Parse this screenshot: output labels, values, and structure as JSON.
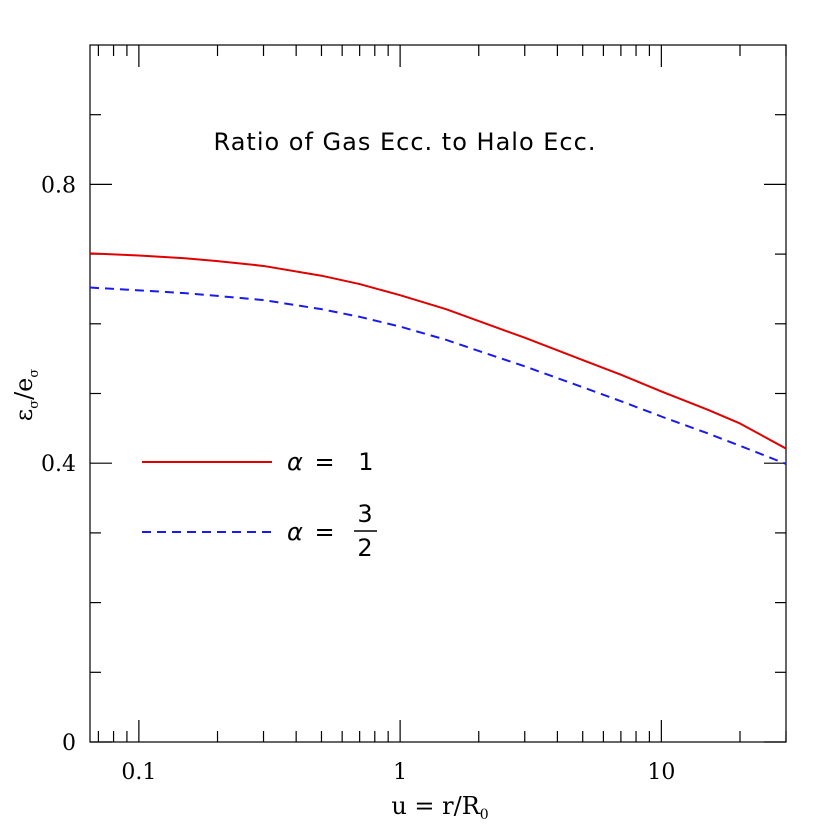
{
  "chart_data": {
    "type": "line",
    "title": "Ratio of Gas Ecc. to Halo Ecc.",
    "x_scale": "log",
    "xlim": [
      0.065,
      30
    ],
    "ylim": [
      0,
      1.0
    ],
    "xlabel": {
      "main": "u = r/R",
      "sub": "0"
    },
    "ylabel": {
      "num": "ε",
      "num_sub": "σ",
      "slash": "/",
      "den": "e",
      "den_sub": "σ"
    },
    "x_ticks_major": [
      0.1,
      1,
      10
    ],
    "x_tick_labels": [
      "0.1",
      "1",
      "10"
    ],
    "y_ticks_major": [
      0,
      0.4,
      0.8
    ],
    "y_tick_labels": [
      "0",
      "0.4",
      "0.8"
    ],
    "y_ticks_minor": [
      0.1,
      0.2,
      0.3,
      0.5,
      0.6,
      0.7,
      0.9
    ],
    "grid": false,
    "legend_position": "left-middle",
    "series": [
      {
        "name": "α = 1",
        "label_alpha": "α",
        "label_eq": "=",
        "label_value": "1",
        "color": "#e00000",
        "dash": "solid",
        "points": [
          [
            0.065,
            0.701
          ],
          [
            0.1,
            0.698
          ],
          [
            0.15,
            0.694
          ],
          [
            0.2,
            0.69
          ],
          [
            0.3,
            0.683
          ],
          [
            0.5,
            0.669
          ],
          [
            0.7,
            0.657
          ],
          [
            1,
            0.641
          ],
          [
            1.5,
            0.621
          ],
          [
            2,
            0.604
          ],
          [
            3,
            0.58
          ],
          [
            5,
            0.548
          ],
          [
            7,
            0.527
          ],
          [
            10,
            0.503
          ],
          [
            15,
            0.477
          ],
          [
            20,
            0.457
          ],
          [
            30,
            0.421
          ]
        ]
      },
      {
        "name": "α = 3/2",
        "label_alpha": "α",
        "label_eq": "=",
        "label_num": "3",
        "label_den": "2",
        "color": "#1a1aee",
        "dash": "dashed",
        "points": [
          [
            0.065,
            0.652
          ],
          [
            0.1,
            0.648
          ],
          [
            0.15,
            0.644
          ],
          [
            0.2,
            0.64
          ],
          [
            0.3,
            0.634
          ],
          [
            0.5,
            0.621
          ],
          [
            0.7,
            0.61
          ],
          [
            1,
            0.596
          ],
          [
            1.5,
            0.577
          ],
          [
            2,
            0.561
          ],
          [
            3,
            0.539
          ],
          [
            5,
            0.509
          ],
          [
            7,
            0.489
          ],
          [
            10,
            0.467
          ],
          [
            15,
            0.443
          ],
          [
            20,
            0.425
          ],
          [
            30,
            0.399
          ]
        ]
      }
    ]
  }
}
